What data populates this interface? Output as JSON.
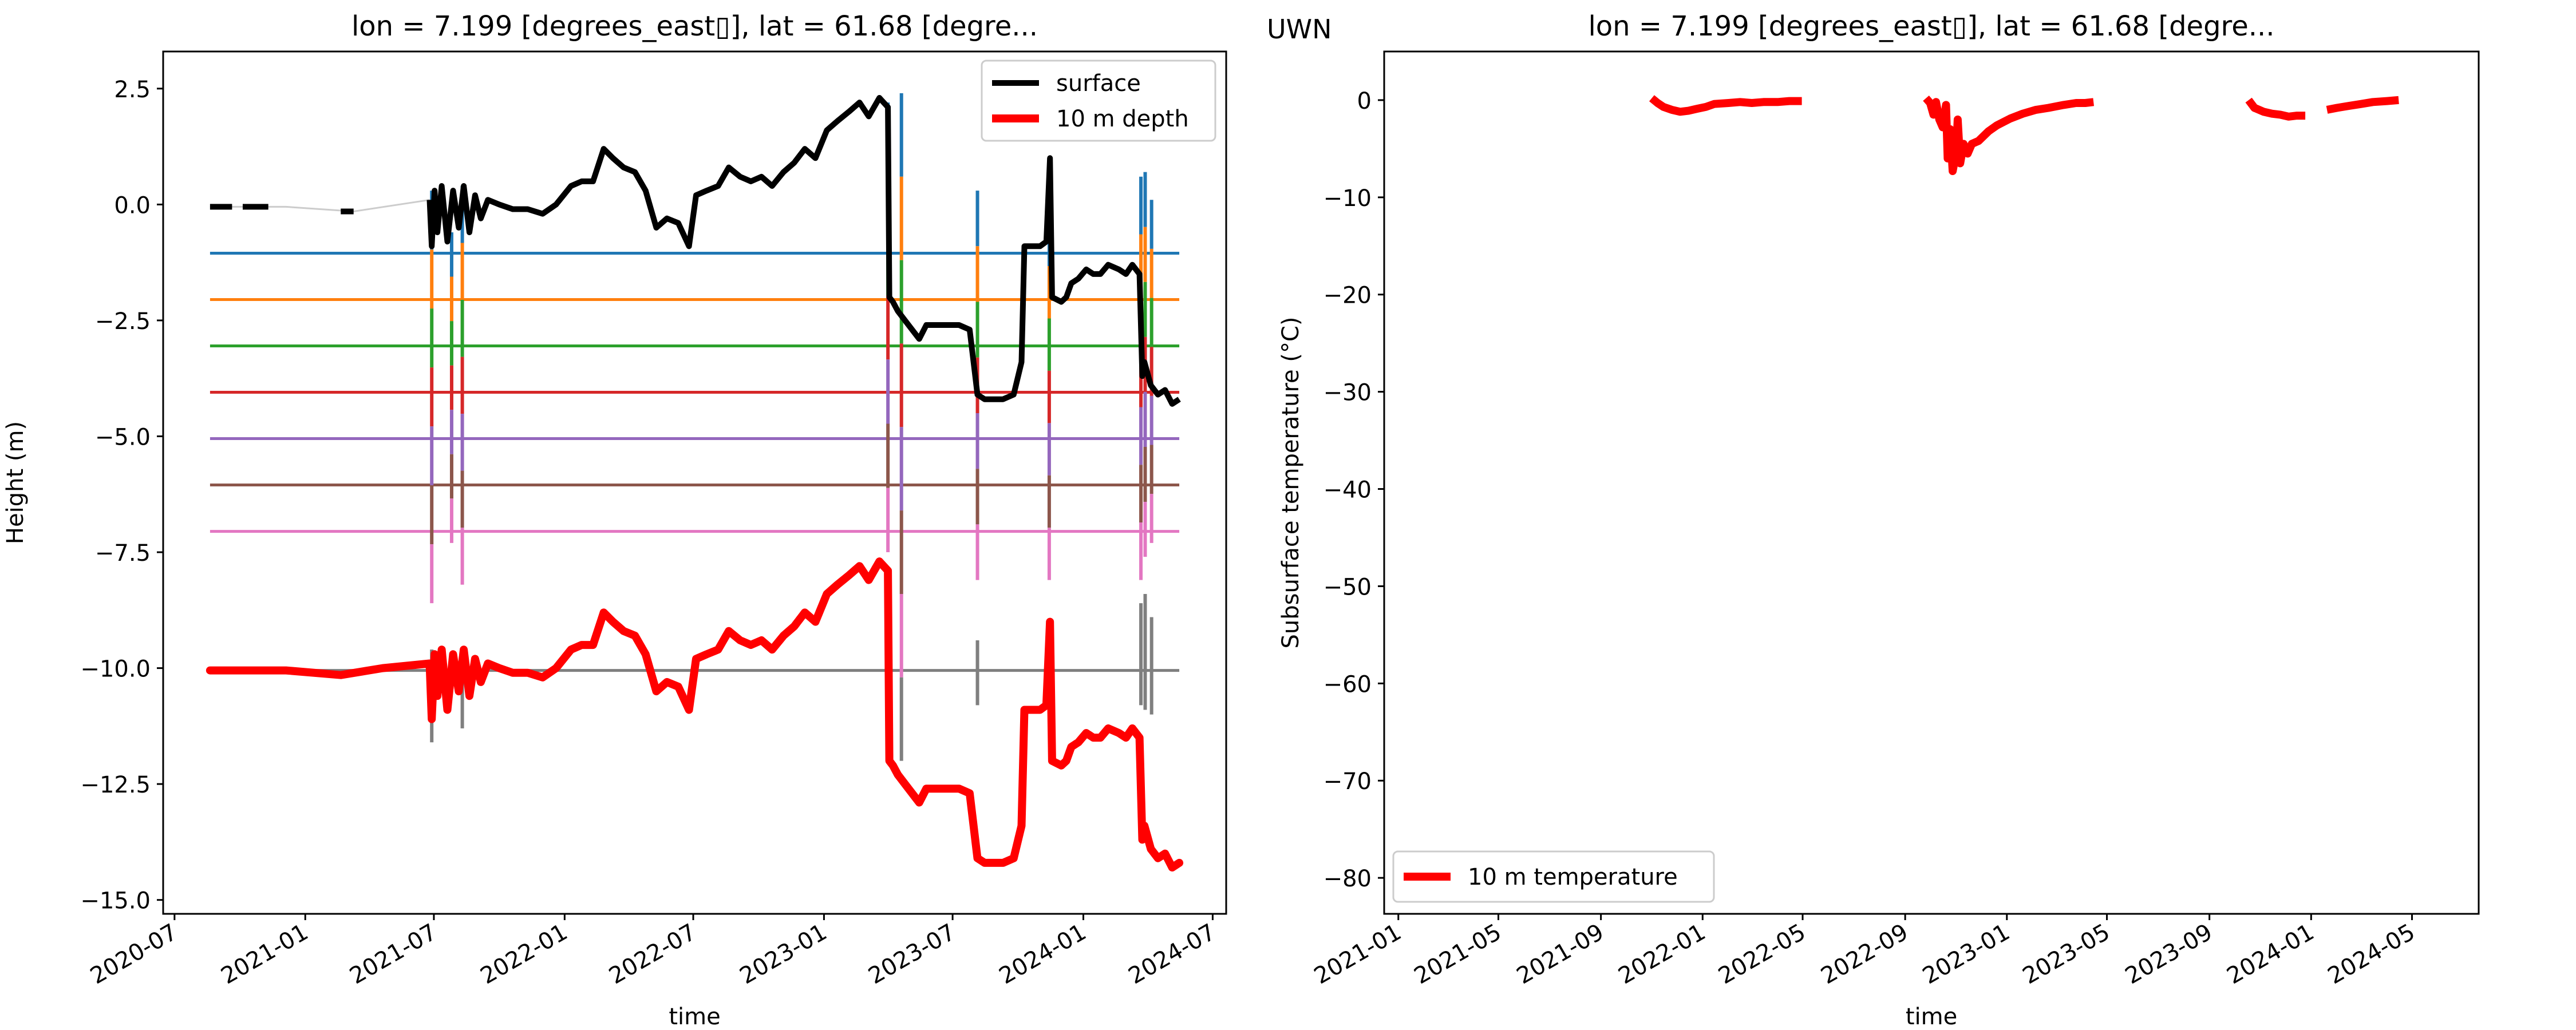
{
  "figure": {
    "station": "UWN"
  },
  "colors": {
    "surface": "#000000",
    "depth10": "#ff0000",
    "t1": "#1f77b4",
    "t2": "#ff7f0e",
    "t3": "#2ca02c",
    "t4": "#d62728",
    "t5": "#9467bd",
    "t6": "#8c564b",
    "t7": "#e377c2",
    "t8": "#7f7f7f",
    "gap": "#cccccc"
  },
  "chart_data": [
    {
      "type": "line",
      "title": "lon = 7.199 [degrees_east▯], lat = 61.68 [degre...",
      "xlabel": "time",
      "ylabel": "Height (m)",
      "xlim": [
        "2020-06-15",
        "2024-07-20"
      ],
      "ylim": [
        -15.3,
        3.3
      ],
      "x_ticks": [
        "2020-07",
        "2021-01",
        "2021-07",
        "2022-01",
        "2022-07",
        "2023-01",
        "2023-07",
        "2024-01",
        "2024-07"
      ],
      "y_ticks": [
        2.5,
        0.0,
        -2.5,
        -5.0,
        -7.5,
        -10.0,
        -12.5,
        -15.0
      ],
      "y_tick_labels": [
        "2.5",
        "0.0",
        "−2.5",
        "−5.0",
        "−7.5",
        "−10.0",
        "−12.5",
        "−15.0"
      ],
      "legend": {
        "position": "top-right",
        "entries": [
          "surface",
          "10 m depth"
        ]
      },
      "series": [
        {
          "name": "surface",
          "x": [
            "2020-08-20",
            "2020-09-20",
            "2020-10-05",
            "2020-11-10",
            "2020-12-05",
            "2021-02-20",
            "2021-03-10",
            "2021-06-25",
            "2021-06-28",
            "2021-07-02",
            "2021-07-06",
            "2021-07-12",
            "2021-07-20",
            "2021-07-28",
            "2021-08-05",
            "2021-08-12",
            "2021-08-20",
            "2021-08-28",
            "2021-09-05",
            "2021-09-15",
            "2021-10-01",
            "2021-10-20",
            "2021-11-10",
            "2021-12-01",
            "2021-12-20",
            "2022-01-10",
            "2022-01-25",
            "2022-02-10",
            "2022-02-25",
            "2022-03-10",
            "2022-03-25",
            "2022-04-10",
            "2022-04-25",
            "2022-05-10",
            "2022-05-25",
            "2022-06-10",
            "2022-06-25",
            "2022-07-05",
            "2022-07-20",
            "2022-08-05",
            "2022-08-20",
            "2022-09-05",
            "2022-09-20",
            "2022-10-05",
            "2022-10-20",
            "2022-11-05",
            "2022-11-20",
            "2022-12-05",
            "2022-12-20",
            "2023-01-05",
            "2023-01-20",
            "2023-02-05",
            "2023-02-20",
            "2023-03-05",
            "2023-03-20",
            "2023-04-01",
            "2023-04-03",
            "2023-04-08",
            "2023-04-15",
            "2023-04-25",
            "2023-05-05",
            "2023-05-15",
            "2023-05-25",
            "2023-06-10",
            "2023-06-25",
            "2023-07-10",
            "2023-07-25",
            "2023-08-05",
            "2023-08-15",
            "2023-08-25",
            "2023-09-10",
            "2023-09-25",
            "2023-10-06",
            "2023-10-10",
            "2023-10-20",
            "2023-11-01",
            "2023-11-10",
            "2023-11-15",
            "2023-11-18",
            "2023-12-01",
            "2023-12-08",
            "2023-12-15",
            "2023-12-25",
            "2024-01-05",
            "2024-01-15",
            "2024-01-25",
            "2024-02-05",
            "2024-02-20",
            "2024-03-01",
            "2024-03-10",
            "2024-03-20",
            "2024-03-24",
            "2024-03-27",
            "2024-04-05",
            "2024-04-15",
            "2024-04-25",
            "2024-05-05",
            "2024-05-15"
          ],
          "y": [
            -0.05,
            -0.05,
            -0.05,
            -0.05,
            -0.05,
            -0.15,
            -0.15,
            0.1,
            -0.9,
            0.3,
            -0.6,
            0.4,
            -0.8,
            0.3,
            -0.5,
            0.4,
            -0.6,
            0.2,
            -0.3,
            0.1,
            0.0,
            -0.1,
            -0.1,
            -0.2,
            0.0,
            0.4,
            0.5,
            0.5,
            1.2,
            1.0,
            0.8,
            0.7,
            0.3,
            -0.5,
            -0.3,
            -0.4,
            -0.9,
            0.2,
            0.3,
            0.4,
            0.8,
            0.6,
            0.5,
            0.6,
            0.4,
            0.7,
            0.9,
            1.2,
            1.0,
            1.6,
            1.8,
            2.0,
            2.2,
            1.9,
            2.3,
            2.1,
            -2.0,
            -2.1,
            -2.3,
            -2.5,
            -2.7,
            -2.9,
            -2.6,
            -2.6,
            -2.6,
            -2.6,
            -2.7,
            -4.1,
            -4.2,
            -4.2,
            -4.2,
            -4.1,
            -3.4,
            -0.9,
            -0.9,
            -0.9,
            -0.8,
            1.0,
            -2.0,
            -2.1,
            -2.0,
            -1.7,
            -1.6,
            -1.4,
            -1.5,
            -1.5,
            -1.3,
            -1.4,
            -1.5,
            -1.3,
            -1.5,
            -3.7,
            -3.4,
            -3.9,
            -4.1,
            -4.0,
            -4.3,
            -4.2
          ],
          "width": 10
        },
        {
          "name": "10 m depth",
          "x": [
            "2020-08-20",
            "2020-10-05",
            "2020-12-05",
            "2021-02-20",
            "2021-04-20",
            "2021-06-25",
            "2021-06-28",
            "2021-07-02",
            "2021-07-06",
            "2021-07-12",
            "2021-07-20",
            "2021-07-28",
            "2021-08-05",
            "2021-08-12",
            "2021-08-20",
            "2021-08-28",
            "2021-09-05",
            "2021-09-15",
            "2021-10-01",
            "2021-10-20",
            "2021-11-10",
            "2021-12-01",
            "2021-12-20",
            "2022-01-10",
            "2022-01-25",
            "2022-02-10",
            "2022-02-25",
            "2022-03-10",
            "2022-03-25",
            "2022-04-10",
            "2022-04-25",
            "2022-05-10",
            "2022-05-25",
            "2022-06-10",
            "2022-06-25",
            "2022-07-05",
            "2022-07-20",
            "2022-08-05",
            "2022-08-20",
            "2022-09-05",
            "2022-09-20",
            "2022-10-05",
            "2022-10-20",
            "2022-11-05",
            "2022-11-20",
            "2022-12-05",
            "2022-12-20",
            "2023-01-05",
            "2023-01-20",
            "2023-02-05",
            "2023-02-20",
            "2023-03-05",
            "2023-03-20",
            "2023-04-01",
            "2023-04-03",
            "2023-04-08",
            "2023-04-15",
            "2023-04-25",
            "2023-05-05",
            "2023-05-15",
            "2023-05-25",
            "2023-06-10",
            "2023-06-25",
            "2023-07-10",
            "2023-07-25",
            "2023-08-05",
            "2023-08-15",
            "2023-08-25",
            "2023-09-10",
            "2023-09-25",
            "2023-10-06",
            "2023-10-10",
            "2023-10-20",
            "2023-11-01",
            "2023-11-10",
            "2023-11-15",
            "2023-11-18",
            "2023-12-01",
            "2023-12-08",
            "2023-12-15",
            "2023-12-25",
            "2024-01-05",
            "2024-01-15",
            "2024-01-25",
            "2024-02-05",
            "2024-02-20",
            "2024-03-01",
            "2024-03-10",
            "2024-03-20",
            "2024-03-24",
            "2024-03-27",
            "2024-04-05",
            "2024-04-15",
            "2024-04-25",
            "2024-05-05",
            "2024-05-15"
          ],
          "y": [
            -10.05,
            -10.05,
            -10.05,
            -10.15,
            -10.0,
            -9.9,
            -11.1,
            -9.7,
            -10.6,
            -9.6,
            -10.9,
            -9.7,
            -10.5,
            -9.6,
            -10.6,
            -9.8,
            -10.3,
            -9.9,
            -10.0,
            -10.1,
            -10.1,
            -10.2,
            -10.0,
            -9.6,
            -9.5,
            -9.5,
            -8.8,
            -9.0,
            -9.2,
            -9.3,
            -9.7,
            -10.5,
            -10.3,
            -10.4,
            -10.9,
            -9.8,
            -9.7,
            -9.6,
            -9.2,
            -9.4,
            -9.5,
            -9.4,
            -9.6,
            -9.3,
            -9.1,
            -8.8,
            -9.0,
            -8.4,
            -8.2,
            -8.0,
            -7.8,
            -8.1,
            -7.7,
            -7.9,
            -12.0,
            -12.1,
            -12.3,
            -12.5,
            -12.7,
            -12.9,
            -12.6,
            -12.6,
            -12.6,
            -12.6,
            -12.7,
            -14.1,
            -14.2,
            -14.2,
            -14.2,
            -14.1,
            -13.4,
            -10.9,
            -10.9,
            -10.9,
            -10.8,
            -9.0,
            -12.0,
            -12.1,
            -12.0,
            -11.7,
            -11.6,
            -11.4,
            -11.5,
            -11.5,
            -11.3,
            -11.4,
            -11.5,
            -11.3,
            -11.5,
            -13.7,
            -13.4,
            -13.9,
            -14.1,
            -14.0,
            -14.3,
            -14.2
          ],
          "width": 14
        }
      ],
      "thermistor_levels": [
        {
          "key": "t1",
          "y": -1.05
        },
        {
          "key": "t2",
          "y": -2.05
        },
        {
          "key": "t3",
          "y": -3.05
        },
        {
          "key": "t4",
          "y": -4.05
        },
        {
          "key": "t5",
          "y": -5.05
        },
        {
          "key": "t6",
          "y": -6.05
        },
        {
          "key": "t7",
          "y": -7.05
        },
        {
          "key": "t8",
          "y": -10.05
        }
      ],
      "spike_events": [
        {
          "x": "2021-06-28",
          "y1": 0.3,
          "y2": -8.6,
          "keys": [
            "t1",
            "t2",
            "t3",
            "t4",
            "t5",
            "t6",
            "t7"
          ]
        },
        {
          "x": "2021-06-28",
          "y1": -9.6,
          "y2": -11.6,
          "keys": [
            "t8"
          ]
        },
        {
          "x": "2021-07-26",
          "y1": -0.6,
          "y2": -7.3,
          "keys": [
            "t1",
            "t2",
            "t3",
            "t4",
            "t5",
            "t6",
            "t7"
          ]
        },
        {
          "x": "2021-08-10",
          "y1": 0.4,
          "y2": -8.2,
          "keys": [
            "t1",
            "t2",
            "t3",
            "t4",
            "t5",
            "t6",
            "t7"
          ]
        },
        {
          "x": "2021-08-10",
          "y1": -9.6,
          "y2": -11.3,
          "keys": [
            "t8"
          ]
        },
        {
          "x": "2023-04-01",
          "y1": 2.2,
          "y2": -7.5,
          "keys": [
            "t1",
            "t2",
            "t3",
            "t4",
            "t5",
            "t6",
            "t7"
          ]
        },
        {
          "x": "2023-04-03",
          "y1": -7.9,
          "y2": -12.0,
          "keys": [
            "t8"
          ]
        },
        {
          "x": "2023-04-20",
          "y1": 2.4,
          "y2": -12.0,
          "keys": [
            "t1",
            "t2",
            "t3",
            "t4",
            "t5",
            "t6",
            "t7",
            "t8"
          ]
        },
        {
          "x": "2023-08-05",
          "y1": 0.3,
          "y2": -8.1,
          "keys": [
            "t1",
            "t2",
            "t3",
            "t4",
            "t5",
            "t6",
            "t7"
          ]
        },
        {
          "x": "2023-08-05",
          "y1": -9.4,
          "y2": -10.8,
          "keys": [
            "t8"
          ]
        },
        {
          "x": "2023-11-14",
          "y1": -0.2,
          "y2": -8.1,
          "keys": [
            "t1",
            "t2",
            "t3",
            "t4",
            "t5",
            "t6",
            "t7"
          ]
        },
        {
          "x": "2023-11-14",
          "y1": -9.4,
          "y2": -10.8,
          "keys": [
            "t8"
          ]
        },
        {
          "x": "2024-03-22",
          "y1": 0.6,
          "y2": -8.1,
          "keys": [
            "t1",
            "t2",
            "t3",
            "t4",
            "t5",
            "t6",
            "t7"
          ]
        },
        {
          "x": "2024-03-22",
          "y1": -8.6,
          "y2": -10.8,
          "keys": [
            "t8"
          ]
        },
        {
          "x": "2024-03-28",
          "y1": 0.7,
          "y2": -7.6,
          "keys": [
            "t1",
            "t2",
            "t3",
            "t4",
            "t5",
            "t6",
            "t7"
          ]
        },
        {
          "x": "2024-03-28",
          "y1": -8.4,
          "y2": -10.9,
          "keys": [
            "t8"
          ]
        },
        {
          "x": "2024-04-06",
          "y1": 0.1,
          "y2": -7.3,
          "keys": [
            "t1",
            "t2",
            "t3",
            "t4",
            "t5",
            "t6",
            "t7"
          ]
        },
        {
          "x": "2024-04-06",
          "y1": -8.9,
          "y2": -11.0,
          "keys": [
            "t8"
          ]
        }
      ]
    },
    {
      "type": "line",
      "title": "lon = 7.199 [degrees_east▯], lat = 61.68 [degre...",
      "xlabel": "time",
      "ylabel": "Subsurface temperature (°C)",
      "xlim": [
        "2020-12-15",
        "2024-07-20"
      ],
      "ylim": [
        -83.7,
        5.0
      ],
      "x_ticks": [
        "2021-01",
        "2021-05",
        "2021-09",
        "2022-01",
        "2022-05",
        "2022-09",
        "2023-01",
        "2023-05",
        "2023-09",
        "2024-01",
        "2024-05"
      ],
      "y_ticks": [
        0,
        -10,
        -20,
        -30,
        -40,
        -50,
        -60,
        -70,
        -80
      ],
      "y_tick_labels": [
        "0",
        "−10",
        "−20",
        "−30",
        "−40",
        "−50",
        "−60",
        "−70",
        "−80"
      ],
      "legend": {
        "position": "bottom-left",
        "entries": [
          "10 m temperature"
        ]
      },
      "series": [
        {
          "name": "10 m temperature",
          "segments": [
            {
              "x": [
                "2021-11-01",
                "2021-11-08",
                "2021-11-15",
                "2021-11-25",
                "2021-12-05",
                "2021-12-15",
                "2021-12-25",
                "2022-01-05",
                "2022-01-15",
                "2022-02-01",
                "2022-02-15",
                "2022-03-01",
                "2022-03-15",
                "2022-04-01",
                "2022-04-15",
                "2022-04-30"
              ],
              "y": [
                0.2,
                -0.3,
                -0.7,
                -1.0,
                -1.2,
                -1.1,
                -0.9,
                -0.7,
                -0.4,
                -0.3,
                -0.2,
                -0.3,
                -0.2,
                -0.2,
                -0.1,
                -0.1
              ]
            },
            {
              "x": [
                "2022-09-26",
                "2022-10-01",
                "2022-10-05",
                "2022-10-08",
                "2022-10-12",
                "2022-10-16",
                "2022-10-20",
                "2022-10-22",
                "2022-10-25",
                "2022-10-28",
                "2022-11-01",
                "2022-11-03",
                "2022-11-06",
                "2022-11-10",
                "2022-11-15",
                "2022-11-20",
                "2022-11-28",
                "2022-12-10",
                "2022-12-20",
                "2023-01-05",
                "2023-01-20",
                "2023-02-05",
                "2023-02-20",
                "2023-03-10",
                "2023-03-25",
                "2023-04-05",
                "2023-04-15"
              ],
              "y": [
                0.2,
                -0.3,
                -1.5,
                -0.2,
                -2.0,
                -2.8,
                -0.5,
                -6.0,
                -3.0,
                -7.3,
                -5.5,
                -2.0,
                -6.5,
                -4.5,
                -5.5,
                -4.5,
                -4.2,
                -3.2,
                -2.6,
                -1.9,
                -1.4,
                -1.0,
                -0.8,
                -0.5,
                -0.3,
                -0.3,
                -0.2
              ]
            },
            {
              "x": [
                "2023-10-18",
                "2023-10-25",
                "2023-11-05",
                "2023-11-15",
                "2023-11-25",
                "2023-12-05",
                "2023-12-15",
                "2023-12-25"
              ],
              "y": [
                0.0,
                -0.8,
                -1.2,
                -1.4,
                -1.5,
                -1.7,
                -1.6,
                -1.6
              ]
            },
            {
              "x": [
                "2024-01-20",
                "2024-02-01",
                "2024-02-15",
                "2024-03-01",
                "2024-03-15",
                "2024-04-01",
                "2024-04-15"
              ],
              "y": [
                -1.0,
                -0.8,
                -0.6,
                -0.4,
                -0.2,
                -0.1,
                0.0
              ]
            }
          ],
          "width": 14
        }
      ]
    }
  ]
}
